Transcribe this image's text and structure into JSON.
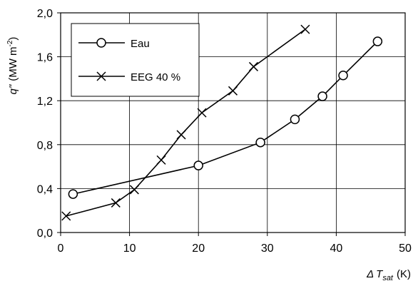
{
  "chart_data": {
    "type": "line",
    "xlim": [
      0,
      50
    ],
    "ylim": [
      0,
      2.0
    ],
    "x_ticks": [
      "0",
      "10",
      "20",
      "30",
      "40",
      "50"
    ],
    "y_ticks": [
      "0,0",
      "0,4",
      "0,8",
      "1,2",
      "1,6",
      "2,0"
    ],
    "y_tick_values": [
      0,
      0.4,
      0.8,
      1.2,
      1.6,
      2.0
    ],
    "x_tick_values": [
      0,
      10,
      20,
      30,
      40,
      50
    ],
    "xlabel": {
      "delta": "Δ",
      "symbol": "T",
      "sub": "sat",
      "unit": "(K)"
    },
    "ylabel": {
      "symbol": "q\"",
      "unit_open": "(MW m",
      "sup": "-2",
      "unit_close": ")"
    },
    "grid": true,
    "legend_position": "top-left",
    "series": [
      {
        "name": "Eau",
        "marker": "circle",
        "color": "#000000",
        "x": [
          1.8,
          20,
          29,
          34,
          38,
          41,
          46
        ],
        "y": [
          0.35,
          0.61,
          0.82,
          1.03,
          1.24,
          1.43,
          1.74
        ]
      },
      {
        "name": "EEG 40 %",
        "marker": "x",
        "color": "#000000",
        "x": [
          0.8,
          8,
          10.7,
          14.6,
          17.5,
          20.5,
          25,
          28,
          35.5
        ],
        "y": [
          0.15,
          0.27,
          0.39,
          0.66,
          0.89,
          1.09,
          1.29,
          1.51,
          1.85
        ]
      }
    ]
  }
}
